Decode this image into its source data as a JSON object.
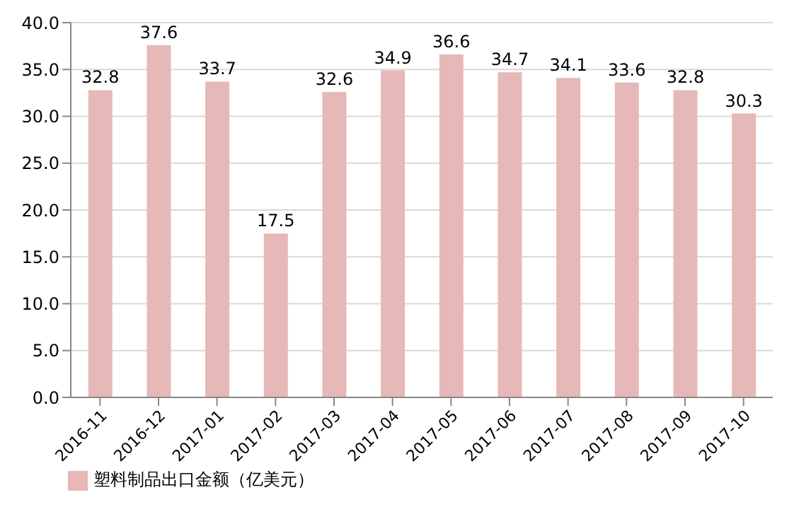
{
  "chart_data": {
    "type": "bar",
    "categories": [
      "2016-11",
      "2016-12",
      "2017-01",
      "2017-02",
      "2017-03",
      "2017-04",
      "2017-05",
      "2017-06",
      "2017-07",
      "2017-08",
      "2017-09",
      "2017-10"
    ],
    "series": [
      {
        "name": "塑料制品出口金额（亿美元）",
        "color": "#e6b8b7",
        "values": [
          32.8,
          37.6,
          33.7,
          17.5,
          32.6,
          34.9,
          36.6,
          34.7,
          34.1,
          33.6,
          32.8,
          30.3
        ]
      }
    ],
    "ylim": [
      0,
      40
    ],
    "yticks": [
      {
        "value": 0,
        "label": "0.0"
      },
      {
        "value": 5,
        "label": "5.0"
      },
      {
        "value": 10,
        "label": "10.0"
      },
      {
        "value": 15,
        "label": "15.0"
      },
      {
        "value": 20,
        "label": "20.0"
      },
      {
        "value": 25,
        "label": "25.0"
      },
      {
        "value": 30,
        "label": "30.0"
      },
      {
        "value": 35,
        "label": "35.0"
      },
      {
        "value": 40,
        "label": "40.0"
      }
    ],
    "grid": "y",
    "legend": "bottom left",
    "data_labels": true
  }
}
